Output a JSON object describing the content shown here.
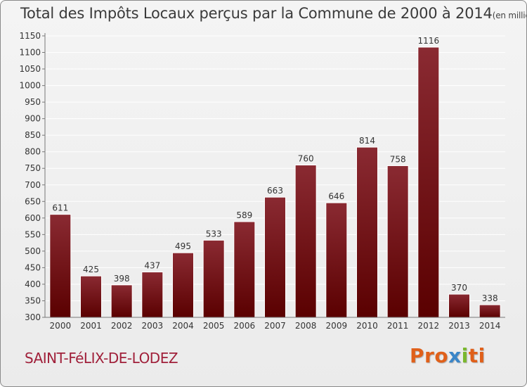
{
  "chart_data": {
    "type": "bar",
    "title": "Total des Impôts Locaux perçus par la Commune de 2000 à 2014",
    "unit": "(en milliers d'€)",
    "categories": [
      "2000",
      "2001",
      "2002",
      "2003",
      "2004",
      "2005",
      "2006",
      "2007",
      "2008",
      "2009",
      "2010",
      "2011",
      "2012",
      "2013",
      "2014"
    ],
    "values": [
      611,
      425,
      398,
      437,
      495,
      533,
      589,
      663,
      760,
      646,
      814,
      758,
      1116,
      370,
      338
    ],
    "ylim": [
      300,
      1150
    ],
    "yticks": [
      300,
      350,
      400,
      450,
      500,
      550,
      600,
      650,
      700,
      750,
      800,
      850,
      900,
      950,
      1000,
      1050,
      1100,
      1150
    ],
    "grid": true,
    "xlabel": "",
    "ylabel": ""
  },
  "footer": {
    "commune": "SAINT-FéLIX-DE-LODEZ",
    "logo": [
      "P",
      "r",
      "o",
      "x",
      "i",
      "t",
      "i"
    ]
  },
  "colors": {
    "bar_top": "#8a2a32",
    "bar_bottom": "#5a0000",
    "grid": "#ffffff",
    "commune": "#a0203a",
    "logo": [
      "#e0601a",
      "#e0601a",
      "#e0601a",
      "#3b86c8",
      "#7ab82e",
      "#e0601a",
      "#e0601a"
    ]
  }
}
